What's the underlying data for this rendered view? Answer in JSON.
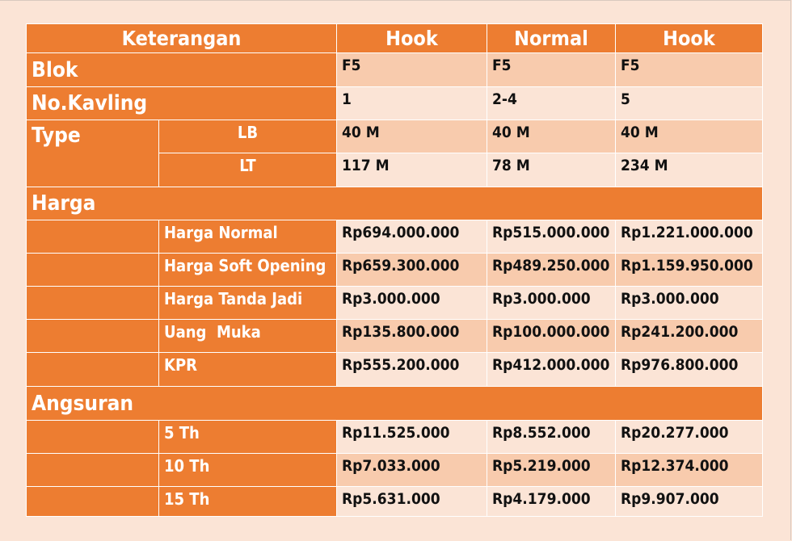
{
  "header": {
    "keterangan": "Keterangan",
    "cols": [
      "Hook",
      "Normal",
      "Hook"
    ]
  },
  "blok": {
    "label": "Blok",
    "values": [
      "F5",
      "F5",
      "F5"
    ]
  },
  "kavling": {
    "label": "No.Kavling",
    "values": [
      "1",
      "2-4",
      "5"
    ]
  },
  "type": {
    "label": "Type",
    "lb": {
      "label": "LB",
      "values": [
        "40 M",
        "40 M",
        "40 M"
      ]
    },
    "lt": {
      "label": "LT",
      "values": [
        "117 M",
        "78 M",
        "234 M"
      ]
    }
  },
  "harga": {
    "title": "Harga",
    "rows": [
      {
        "label": "Harga Normal",
        "values": [
          "Rp694.000.000",
          "Rp515.000.000",
          "Rp1.221.000.000"
        ]
      },
      {
        "label": "Harga Soft Opening",
        "values": [
          "Rp659.300.000",
          "Rp489.250.000",
          "Rp1.159.950.000"
        ]
      },
      {
        "label": "Harga Tanda Jadi",
        "values": [
          "Rp3.000.000",
          "Rp3.000.000",
          "Rp3.000.000"
        ]
      },
      {
        "label": "Uang  Muka",
        "values": [
          "Rp135.800.000",
          "Rp100.000.000",
          "Rp241.200.000"
        ]
      },
      {
        "label": "KPR",
        "values": [
          "Rp555.200.000",
          "Rp412.000.000",
          "Rp976.800.000"
        ]
      }
    ]
  },
  "angsuran": {
    "title": "Angsuran",
    "rows": [
      {
        "label": "5 Th",
        "values": [
          "Rp11.525.000",
          "Rp8.552.000",
          "Rp20.277.000"
        ]
      },
      {
        "label": "10 Th",
        "values": [
          "Rp7.033.000",
          "Rp5.219.000",
          "Rp12.374.000"
        ]
      },
      {
        "label": "15 Th",
        "values": [
          "Rp5.631.000",
          "Rp4.179.000",
          "Rp9.907.000"
        ]
      }
    ]
  }
}
